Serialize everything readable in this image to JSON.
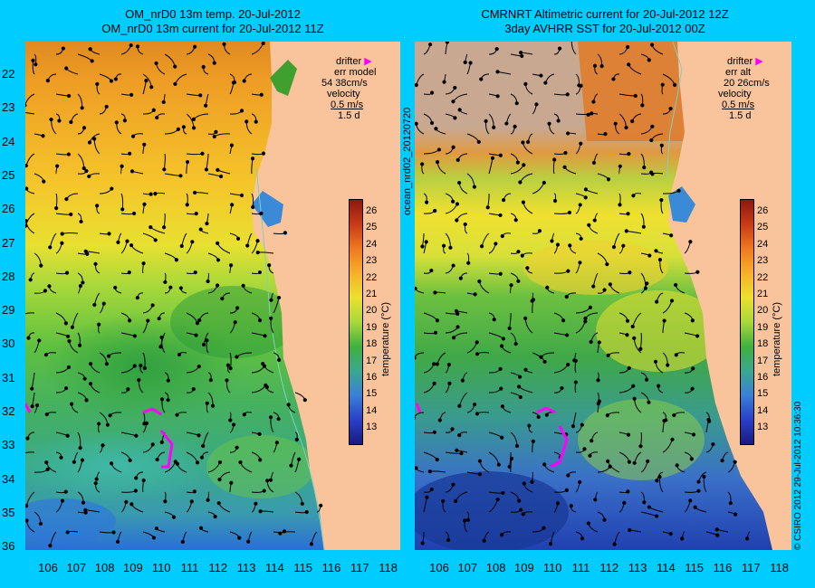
{
  "left_panel": {
    "title_line1": "OM_nrD0 13m temp. 20-Jul-2012",
    "title_line2": "OM_nrD0 13m current for 20-Jul-2012 11Z",
    "legend": {
      "drifter": "drifter",
      "err_label": "err model",
      "err_value": "54 38cm/s",
      "velocity": "velocity",
      "velocity_scale": "0.5 m/s",
      "duration": "1.5 d"
    }
  },
  "right_panel": {
    "title_line1": "CMRNRT Altimetric current for 20-Jul-2012 12Z",
    "title_line2": "3day AVHRR SST for 20-Jul-2012 00Z",
    "legend": {
      "drifter": "drifter",
      "err_label": "err alt",
      "err_value": "20 26cm/s",
      "velocity": "velocity",
      "velocity_scale": "0.5 m/s",
      "duration": "1.5 d"
    }
  },
  "lat_ticks": [
    "22",
    "23",
    "24",
    "25",
    "26",
    "27",
    "28",
    "29",
    "30",
    "31",
    "32",
    "33",
    "34",
    "35",
    "36"
  ],
  "lon_ticks": [
    "106",
    "107",
    "108",
    "109",
    "110",
    "111",
    "112",
    "113",
    "114",
    "115",
    "116",
    "117",
    "118"
  ],
  "colorbar": {
    "ticks": [
      "26",
      "25",
      "24",
      "23",
      "22",
      "21",
      "20",
      "19",
      "18",
      "17",
      "16",
      "15",
      "14",
      "13"
    ],
    "label": "temperature (°C)"
  },
  "side_texts": {
    "left_vertical": "ocean_nrd02_20120720",
    "right_vertical": "© CSIRO 2012    29-Jul-2012 10:36:30"
  },
  "colors": {
    "background": "#00ccff",
    "land": "#f9c39b",
    "cloud": "#c8a890",
    "drifter": "#ff00ff"
  }
}
